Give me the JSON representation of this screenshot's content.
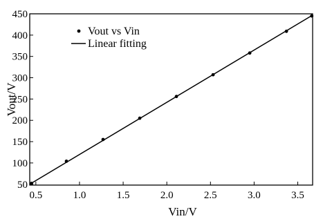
{
  "chart_data": {
    "type": "scatter",
    "xlabel": "Vin/V",
    "ylabel": "Vout/V",
    "xlim": [
      0.43,
      3.67
    ],
    "ylim": [
      48,
      450
    ],
    "x_ticks": [
      0.5,
      1.0,
      1.5,
      2.0,
      2.5,
      3.0,
      3.5
    ],
    "x_tick_labels": [
      "0.5",
      "1.0",
      "1.5",
      "2.0",
      "2.5",
      "3.0",
      "3.5"
    ],
    "y_ticks": [
      50,
      100,
      150,
      200,
      250,
      300,
      350,
      400,
      450
    ],
    "y_tick_labels": [
      "50",
      "100",
      "150",
      "200",
      "250",
      "300",
      "350",
      "400",
      "450"
    ],
    "grid": false,
    "legend_position": "top-left",
    "legend": [
      "Vout vs Vin",
      "Linear fitting"
    ],
    "series": [
      {
        "name": "Vout vs Vin",
        "kind": "scatter",
        "color": "#000000",
        "x": [
          0.45,
          0.85,
          1.27,
          1.69,
          2.11,
          2.53,
          2.95,
          3.37,
          3.66
        ],
        "y": [
          52,
          104,
          155,
          205,
          256,
          307,
          358,
          409,
          445
        ]
      },
      {
        "name": "Linear fitting",
        "kind": "line",
        "color": "#000000",
        "x": [
          0.43,
          3.67
        ],
        "y": [
          50,
          447
        ]
      }
    ]
  }
}
